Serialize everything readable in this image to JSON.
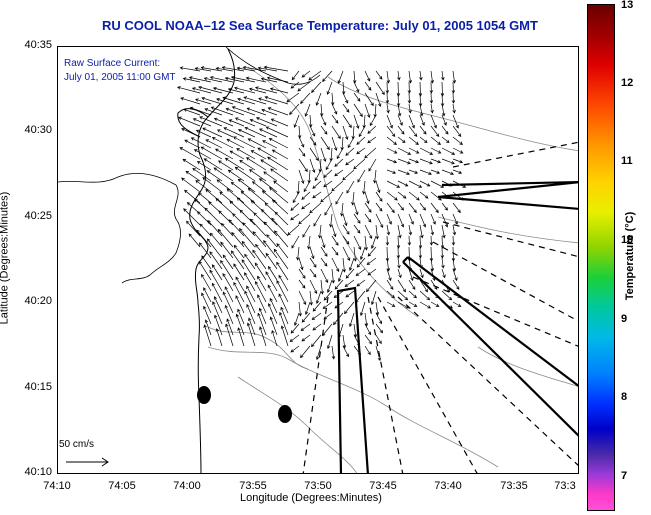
{
  "title": "RU COOL  NOAA–12  Sea Surface Temperature:  July 01, 2005 1054 GMT",
  "legend": {
    "line1": "Raw Surface Current:",
    "line2": "July 01, 2005 11:00 GMT"
  },
  "scale_label": "50 cm/s",
  "axes": {
    "x_title": "Longitude (Degrees:Minutes)",
    "y_title": "Latitude (Degrees:Minutes)",
    "x_ticks": [
      "74:10",
      "74:05",
      "74:00",
      "73:55",
      "73:50",
      "73:45",
      "73:40",
      "73:35",
      "73:3"
    ],
    "y_ticks": [
      "40:35",
      "40:30",
      "40:25",
      "40:20",
      "40:15",
      "40:10"
    ]
  },
  "colorbar": {
    "title": "Temperature (°C)",
    "ticks": [
      "13",
      "12",
      "11",
      "10",
      "9",
      "8",
      "7"
    ]
  },
  "colors": {
    "title": "#0a1fa8",
    "coast": "#000000",
    "bathymetry": "#8a8a8a"
  }
}
